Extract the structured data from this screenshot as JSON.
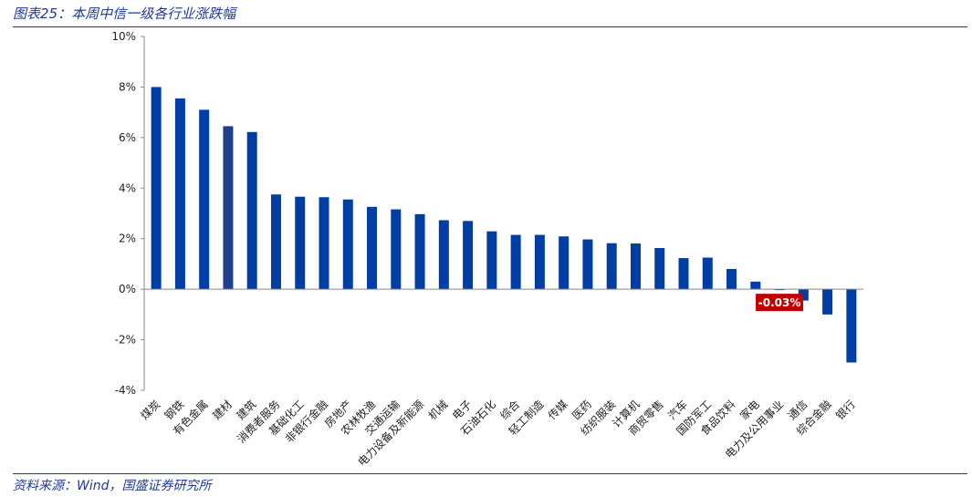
{
  "title": "图表25：本周中信一级各行业涨跌幅",
  "source": "资料来源：Wind，国盛证券研究所",
  "colors": {
    "bar": "#003da5",
    "bar_highlight": "#1f3f8c",
    "label_bg": "#c00000",
    "label_text": "#ffffff",
    "rule": "#1f3a93"
  },
  "chart_data": {
    "type": "bar",
    "title": "",
    "xlabel": "",
    "ylabel": "",
    "ylim": [
      -4,
      10
    ],
    "yticks": [
      "10%",
      "8%",
      "6%",
      "4%",
      "2%",
      "0%",
      "-2%",
      "-4%"
    ],
    "ytick_values": [
      10,
      8,
      6,
      4,
      2,
      0,
      -2,
      -4
    ],
    "grid": false,
    "categories": [
      "煤炭",
      "钢铁",
      "有色金属",
      "建材",
      "建筑",
      "消费者服务",
      "基础化工",
      "非银行金融",
      "房地产",
      "农林牧渔",
      "交通运输",
      "电力设备及新能源",
      "机械",
      "电子",
      "石油石化",
      "综合",
      "轻工制造",
      "传媒",
      "医药",
      "纺织服装",
      "计算机",
      "商贸零售",
      "汽车",
      "国防军工",
      "食品饮料",
      "家电",
      "电力及公用事业",
      "通信",
      "综合金融",
      "银行"
    ],
    "values": [
      8.0,
      7.55,
      7.1,
      6.45,
      6.22,
      3.75,
      3.66,
      3.64,
      3.55,
      3.26,
      3.16,
      2.97,
      2.73,
      2.7,
      2.29,
      2.15,
      2.15,
      2.09,
      1.97,
      1.82,
      1.81,
      1.63,
      1.23,
      1.25,
      0.8,
      0.3,
      -0.03,
      -0.45,
      -1.0,
      -2.9
    ],
    "highlight_index": 3,
    "annotation": {
      "index": 26,
      "text": "-0.03%"
    }
  }
}
